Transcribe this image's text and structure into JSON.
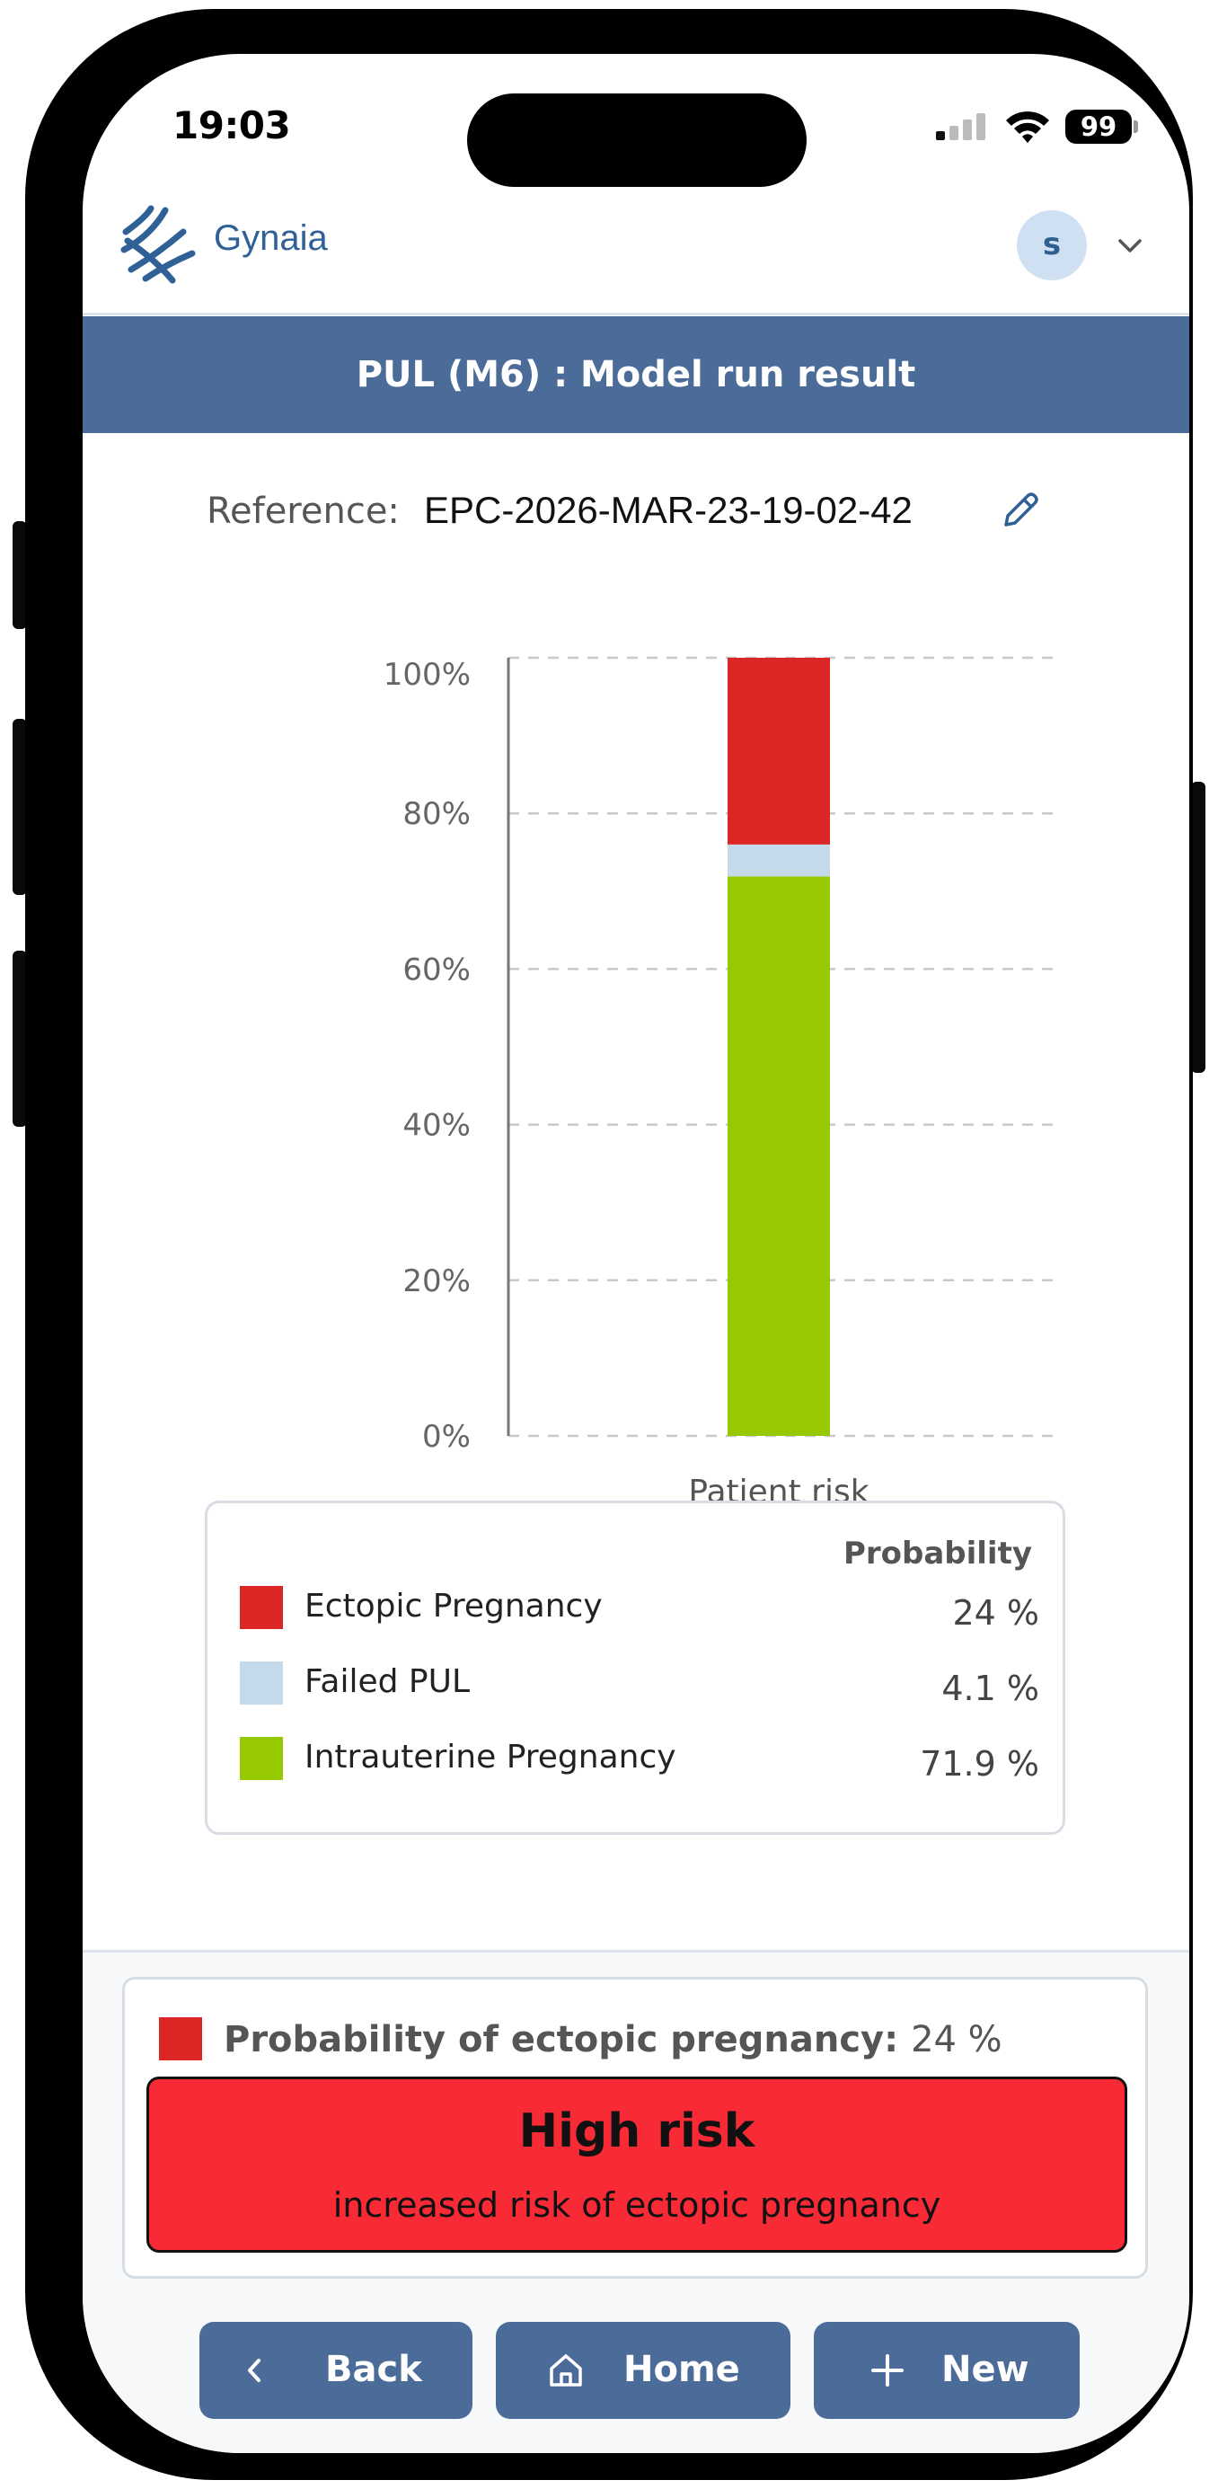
{
  "status_bar": {
    "time": "19:03",
    "battery": "99"
  },
  "header": {
    "brand": "Gynaia",
    "avatar_initial": "s"
  },
  "page_title": "PUL (M6) : Model run result",
  "reference": {
    "label": "Reference:",
    "value": "EPC-2026-MAR-23-19-02-42"
  },
  "chart_data": {
    "type": "bar",
    "stacked": true,
    "title": "",
    "categories": [
      "Patient risk"
    ],
    "xlabel": "Patient risk",
    "ylabel": "",
    "ylim": [
      0,
      100
    ],
    "y_ticks": [
      "0%",
      "20%",
      "40%",
      "60%",
      "80%",
      "100%"
    ],
    "series": [
      {
        "name": "Intrauterine Pregnancy",
        "values": [
          71.9
        ],
        "color": "#97c900"
      },
      {
        "name": "Failed PUL",
        "values": [
          4.1
        ],
        "color": "#c4d9ea"
      },
      {
        "name": "Ectopic Pregnancy",
        "values": [
          24
        ],
        "color": "#dc2626"
      }
    ]
  },
  "legend": {
    "header": "Probability",
    "items": [
      {
        "label": "Ectopic Pregnancy",
        "value": "24 %",
        "color": "#dc2626"
      },
      {
        "label": "Failed PUL",
        "value": "4.1 %",
        "color": "#c4d9ea"
      },
      {
        "label": "Intrauterine Pregnancy",
        "value": "71.9 %",
        "color": "#97c900"
      }
    ]
  },
  "risk": {
    "prob_label": "Probability of ectopic pregnancy:",
    "prob_value": "24 %",
    "level": "High risk",
    "description": "increased risk of ectopic pregnancy",
    "color": "#f82a35"
  },
  "nav": {
    "back": "Back",
    "home": "Home",
    "new": "New"
  },
  "colors": {
    "accent": "#4b6b98",
    "brand": "#2f6197"
  }
}
